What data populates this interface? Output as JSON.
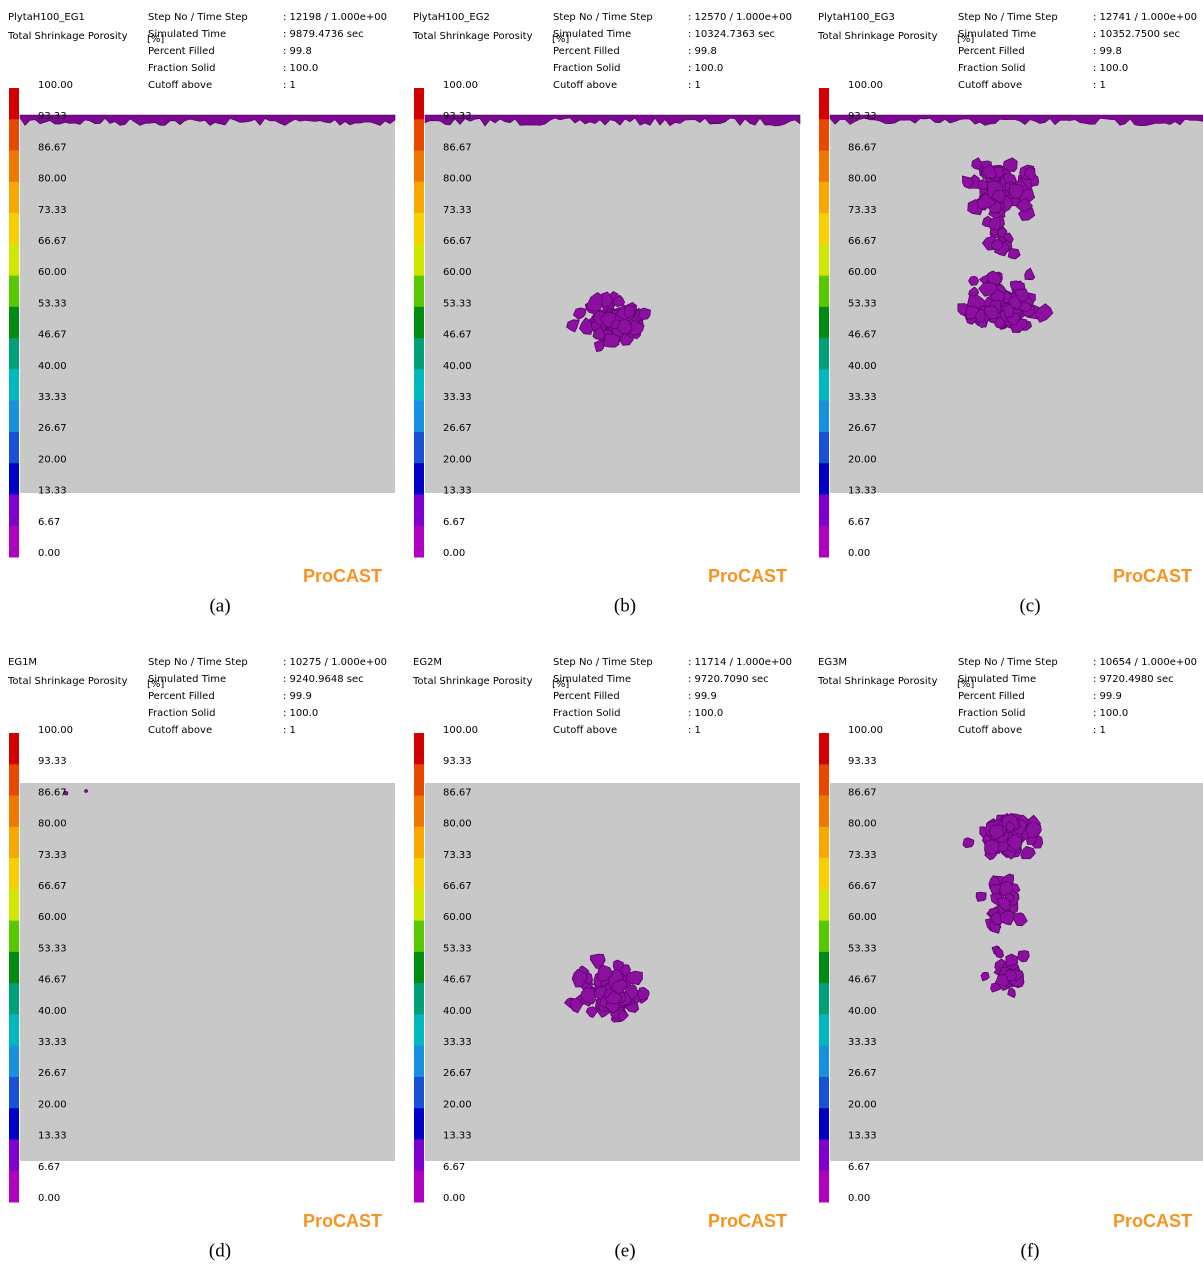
{
  "legend": {
    "labels": [
      "100.00",
      "93.33",
      "86.67",
      "80.00",
      "73.33",
      "66.67",
      "60.00",
      "53.33",
      "46.67",
      "40.00",
      "33.33",
      "26.67",
      "20.00",
      "13.33",
      "6.67",
      "0.00"
    ],
    "colors": [
      "#d20000",
      "#e84800",
      "#f07800",
      "#f8a800",
      "#f8d000",
      "#d0e800",
      "#58c800",
      "#008c10",
      "#00a078",
      "#00b8c0",
      "#1890e0",
      "#1850d8",
      "#0000c8",
      "#8000d0",
      "#b000c0"
    ]
  },
  "panels": [
    {
      "name": "PlytaH100_EG1",
      "title": "Total Shrinkage Porosity",
      "unit": "[%]",
      "info": [
        {
          "label": "Step No / Time Step",
          "value": ": 12198 / 1.000e+00"
        },
        {
          "label": "Simulated Time",
          "value": ": 9879.4736 sec"
        },
        {
          "label": "Percent Filled",
          "value": ": 99.8"
        },
        {
          "label": "Fraction Solid",
          "value": ": 100.0"
        },
        {
          "label": "Cutoff above",
          "value": ": 1"
        }
      ],
      "brand": "ProCAST",
      "caption": "(a)"
    },
    {
      "name": "PlytaH100_EG2",
      "title": "Total Shrinkage Porosity",
      "unit": "[%]",
      "info": [
        {
          "label": "Step No / Time Step",
          "value": ": 12570 / 1.000e+00"
        },
        {
          "label": "Simulated Time",
          "value": ": 10324.7363 sec"
        },
        {
          "label": "Percent Filled",
          "value": ": 99.8"
        },
        {
          "label": "Fraction Solid",
          "value": ": 100.0"
        },
        {
          "label": "Cutoff above",
          "value": ": 1"
        }
      ],
      "brand": "ProCAST",
      "caption": "(b)"
    },
    {
      "name": "PlytaH100_EG3",
      "title": "Total Shrinkage Porosity",
      "unit": "[%]",
      "info": [
        {
          "label": "Step No / Time Step",
          "value": ": 12741 / 1.000e+00"
        },
        {
          "label": "Simulated Time",
          "value": ": 10352.7500 sec"
        },
        {
          "label": "Percent Filled",
          "value": ": 99.8"
        },
        {
          "label": "Fraction Solid",
          "value": ": 100.0"
        },
        {
          "label": "Cutoff above",
          "value": ": 1"
        }
      ],
      "brand": "ProCAST",
      "caption": "(c)"
    },
    {
      "name": "EG1M",
      "title": "Total Shrinkage Porosity",
      "unit": "[%]",
      "info": [
        {
          "label": "Step No / Time Step",
          "value": ": 10275 / 1.000e+00"
        },
        {
          "label": "Simulated Time",
          "value": ": 9240.9648 sec"
        },
        {
          "label": "Percent Filled",
          "value": ": 99.9"
        },
        {
          "label": "Fraction Solid",
          "value": ": 100.0"
        },
        {
          "label": "Cutoff above",
          "value": ": 1"
        }
      ],
      "brand": "ProCAST",
      "caption": "(d)"
    },
    {
      "name": "EG2M",
      "title": "Total Shrinkage Porosity",
      "unit": "[%]",
      "info": [
        {
          "label": "Step No / Time Step",
          "value": ": 11714 / 1.000e+00"
        },
        {
          "label": "Simulated Time",
          "value": ": 9720.7090 sec"
        },
        {
          "label": "Percent Filled",
          "value": ": 99.9"
        },
        {
          "label": "Fraction Solid",
          "value": ": 100.0"
        },
        {
          "label": "Cutoff above",
          "value": ": 1"
        }
      ],
      "brand": "ProCAST",
      "caption": "(e)"
    },
    {
      "name": "EG3M",
      "title": "Total Shrinkage Porosity",
      "unit": "[%]",
      "info": [
        {
          "label": "Step No / Time Step",
          "value": ": 10654 / 1.000e+00"
        },
        {
          "label": "Simulated Time",
          "value": ": 9720.4980 sec"
        },
        {
          "label": "Percent Filled",
          "value": ": 99.9"
        },
        {
          "label": "Fraction Solid",
          "value": ": 100.0"
        },
        {
          "label": "Cutoff above",
          "value": ": 1"
        }
      ],
      "brand": "ProCAST",
      "caption": "(f)"
    }
  ]
}
